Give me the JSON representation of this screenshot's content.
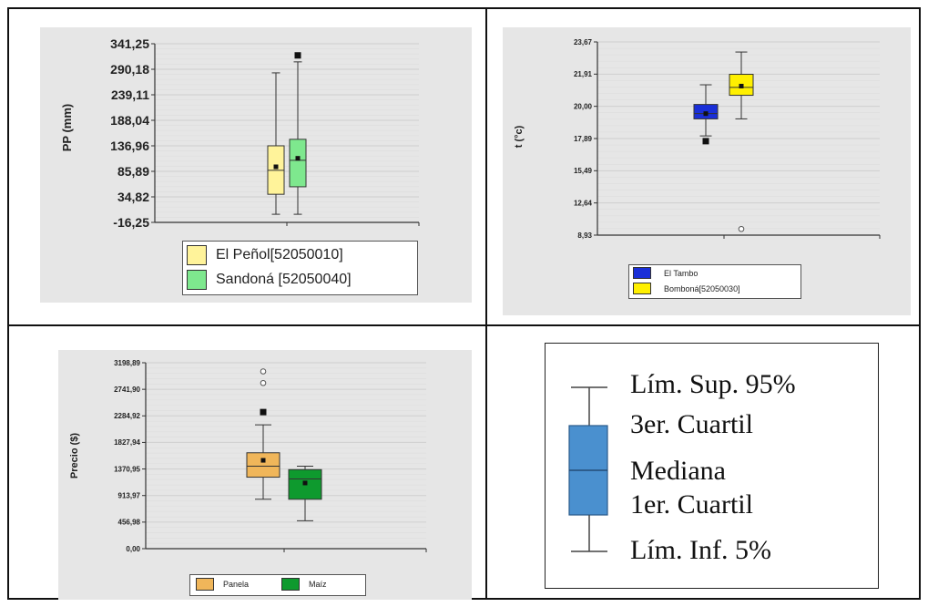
{
  "chart_data": [
    {
      "type": "box",
      "ylabel": "PP (mm)",
      "yticks": [
        "341,25",
        "290,18",
        "239,11",
        "188,04",
        "136,96",
        "85,89",
        "34,82",
        "-16,25"
      ],
      "ylim": [
        -16.25,
        341.25
      ],
      "legend": [
        "El Peñol[52050010]",
        "Sandoná [52050040]"
      ],
      "series": [
        {
          "name": "El Peñol[52050010]",
          "color": "#fff39a",
          "whisker_low": 0,
          "q1": 40,
          "median": 88,
          "q3": 137,
          "whisker_high": 283,
          "mean": 95,
          "outliers": []
        },
        {
          "name": "Sandoná [52050040]",
          "color": "#7ee88e",
          "whisker_low": 0,
          "q1": 55,
          "median": 108,
          "q3": 150,
          "whisker_high": 305,
          "mean": 112,
          "outliers": [
            318
          ]
        }
      ]
    },
    {
      "type": "box",
      "ylabel": "t (°c)",
      "yticks": [
        "23,67",
        "21,91",
        "20,00",
        "17,89",
        "15,49",
        "12,64",
        "8,93"
      ],
      "ylim": [
        8.93,
        23.67
      ],
      "legend": [
        "El Tambo",
        "Bomboná[52050030]"
      ],
      "series": [
        {
          "name": "El Tambo",
          "color": "#1a2fd8",
          "whisker_low": 16.5,
          "q1": 17.8,
          "median": 18.2,
          "q3": 18.9,
          "whisker_high": 20.4,
          "mean": 18.2,
          "outliers": [
            16.1
          ]
        },
        {
          "name": "Bomboná[52050030]",
          "color": "#fff000",
          "whisker_low": 17.8,
          "q1": 19.6,
          "median": 20.2,
          "q3": 21.2,
          "whisker_high": 22.9,
          "mean": 20.3,
          "outliers": [
            9.4
          ]
        }
      ]
    },
    {
      "type": "box",
      "ylabel": "Precio ($)",
      "yticks": [
        "3198,89",
        "2741,90",
        "2284,92",
        "1827,94",
        "1370,95",
        "913,97",
        "456,98",
        "0,00"
      ],
      "ylim": [
        0,
        3198.89
      ],
      "legend": [
        "Panela",
        "Maíz"
      ],
      "series": [
        {
          "name": "Panela",
          "color": "#f0b65a",
          "whisker_low": 850,
          "q1": 1230,
          "median": 1420,
          "q3": 1650,
          "whisker_high": 2130,
          "mean": 1520,
          "outliers": [
            3050,
            2850,
            2350
          ]
        },
        {
          "name": "Maíz",
          "color": "#0e9a2e",
          "whisker_low": 480,
          "q1": 850,
          "median": 1200,
          "q3": 1360,
          "whisker_high": 1420,
          "mean": 1130,
          "outliers": []
        }
      ]
    }
  ],
  "legend_explainer": {
    "labels": {
      "sup": "Lím. Sup. 95%",
      "q3": "3er. Cuartil",
      "med": "Mediana",
      "q1": "1er. Cuartil",
      "inf": "Lím. Inf. 5%"
    },
    "box_color": "#4a90cf"
  }
}
